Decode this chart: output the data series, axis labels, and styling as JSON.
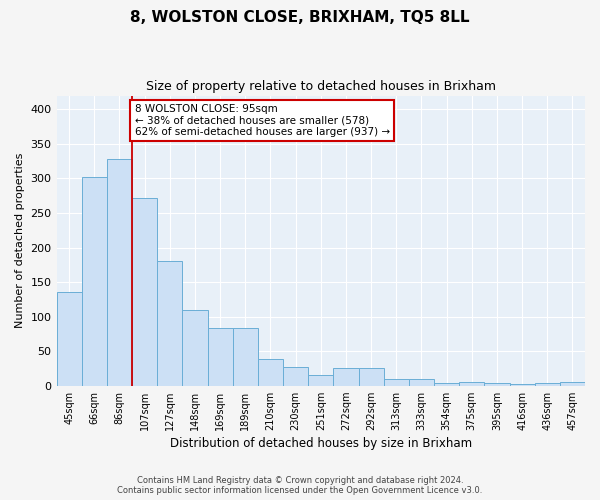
{
  "title": "8, WOLSTON CLOSE, BRIXHAM, TQ5 8LL",
  "subtitle": "Size of property relative to detached houses in Brixham",
  "xlabel": "Distribution of detached houses by size in Brixham",
  "ylabel": "Number of detached properties",
  "bar_color": "#cce0f5",
  "bar_edge_color": "#6aaed6",
  "bar_heights": [
    135,
    302,
    328,
    272,
    180,
    110,
    83,
    83,
    38,
    27,
    16,
    26,
    26,
    9,
    9,
    4,
    6,
    4,
    3,
    4,
    5
  ],
  "categories": [
    "45sqm",
    "66sqm",
    "86sqm",
    "107sqm",
    "127sqm",
    "148sqm",
    "169sqm",
    "189sqm",
    "210sqm",
    "230sqm",
    "251sqm",
    "272sqm",
    "292sqm",
    "313sqm",
    "333sqm",
    "354sqm",
    "375sqm",
    "395sqm",
    "416sqm",
    "436sqm",
    "457sqm"
  ],
  "red_line_x": 2.5,
  "annotation_text": "8 WOLSTON CLOSE: 95sqm\n← 38% of detached houses are smaller (578)\n62% of semi-detached houses are larger (937) →",
  "annotation_box_color": "#ffffff",
  "annotation_box_edge": "#cc0000",
  "footer_line1": "Contains HM Land Registry data © Crown copyright and database right 2024.",
  "footer_line2": "Contains public sector information licensed under the Open Government Licence v3.0.",
  "bg_color": "#e8f0f8",
  "grid_color": "#ffffff",
  "fig_bg_color": "#f5f5f5",
  "ylim": [
    0,
    420
  ],
  "yticks": [
    0,
    50,
    100,
    150,
    200,
    250,
    300,
    350,
    400
  ]
}
